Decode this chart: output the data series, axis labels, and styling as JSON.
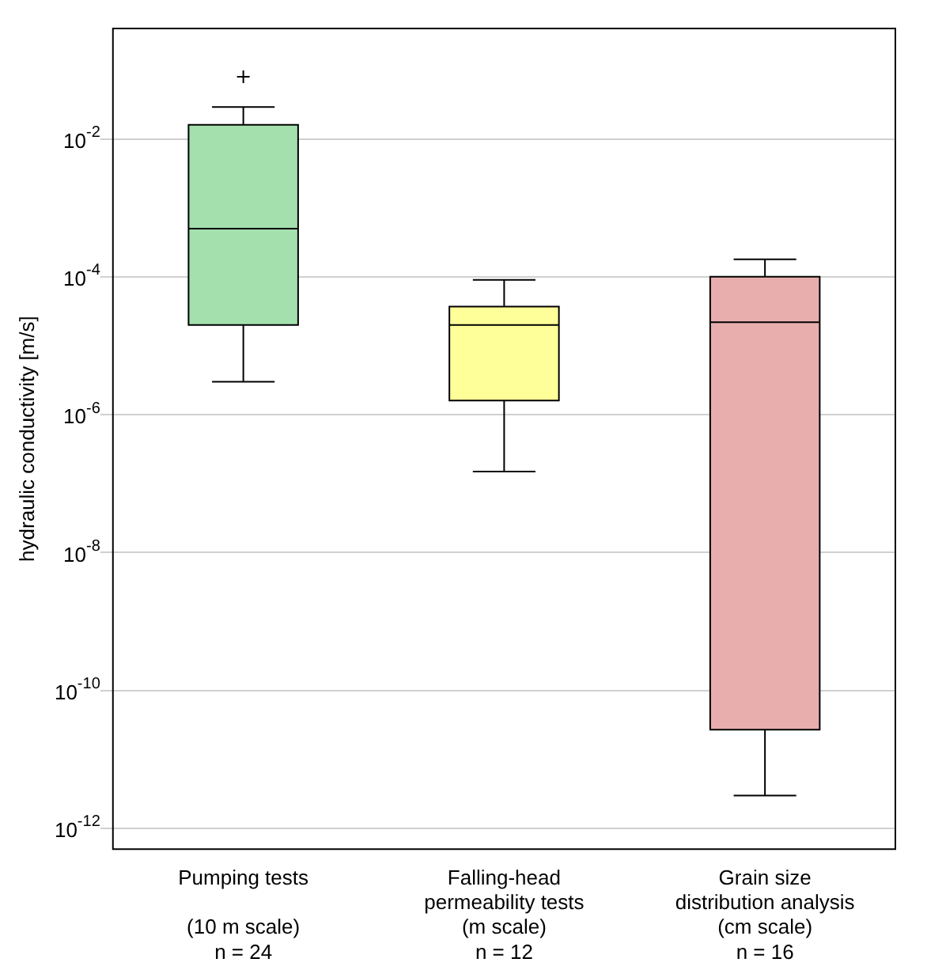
{
  "chart_data": {
    "type": "box",
    "ylabel": "hydraulic conductivity [m/s]",
    "categories": [
      "Pumping tests\n\n(10 m scale)\nn = 24",
      "Falling-head\npermeability tests\n(m scale)\nn = 12",
      "Grain size\ndistribution analysis\n(cm scale)\nn = 16"
    ],
    "colors": [
      "#a3e0ad",
      "#ffff99",
      "#e8aeae"
    ],
    "boxes": [
      {
        "low": 3e-06,
        "q1": 2e-05,
        "median": 0.0005,
        "q3": 0.016,
        "high": 0.029,
        "outliers": [
          0.08
        ]
      },
      {
        "low": 1.5e-07,
        "q1": 1.6e-06,
        "median": 2e-05,
        "q3": 3.7e-05,
        "high": 9e-05
      },
      {
        "low": 3e-12,
        "q1": 2.7e-11,
        "median": 2.2e-05,
        "q3": 0.0001,
        "high": 0.00018
      }
    ],
    "log": "y",
    "ylim": [
      5e-13,
      0.4
    ],
    "yticks": [
      {
        "value": 1e-12,
        "label": "10$^{-12}$"
      },
      {
        "value": 1e-10,
        "label": "10$^{-10}$"
      },
      {
        "value": 1e-08,
        "label": "10$^{-8}$"
      },
      {
        "value": 1e-06,
        "label": "10$^{-6}$"
      },
      {
        "value": 0.0001,
        "label": "10$^{-4}$"
      },
      {
        "value": 0.01,
        "label": "10$^{-2}$"
      }
    ],
    "grid": "y",
    "marker": "cross",
    "legend": false
  }
}
